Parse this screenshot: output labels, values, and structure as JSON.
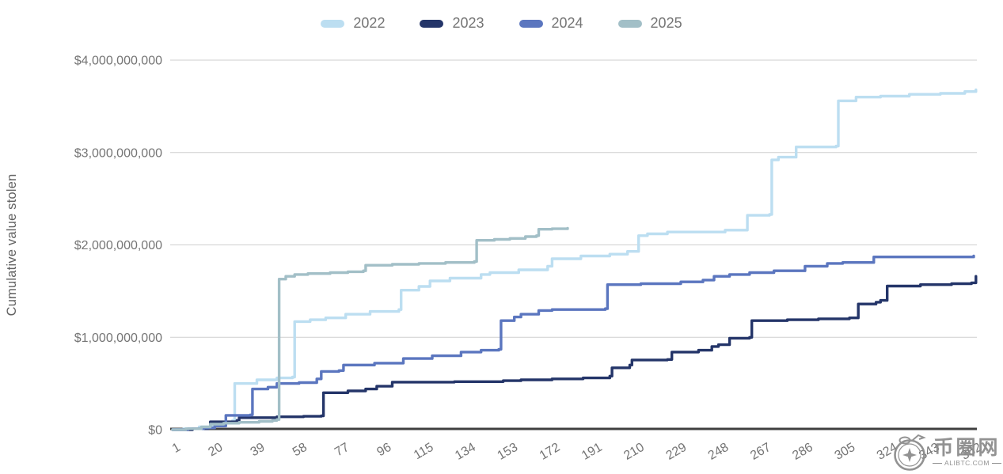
{
  "y_axis": {
    "title": "Cumulative value stolen",
    "ticks": [
      {
        "value": 0,
        "label": "$0"
      },
      {
        "value": 1,
        "label": "$1,000,000,000"
      },
      {
        "value": 2,
        "label": "$2,000,000,000"
      },
      {
        "value": 3,
        "label": "$3,000,000,000"
      },
      {
        "value": 4,
        "label": "$4,000,000,000"
      }
    ]
  },
  "x_axis": {
    "ticks": [
      1,
      20,
      39,
      58,
      77,
      96,
      115,
      134,
      153,
      172,
      191,
      210,
      229,
      248,
      267,
      286,
      305,
      324,
      343,
      362
    ]
  },
  "watermark": {
    "site_name": "币圈网",
    "domain_label": "ALIBTC.COM"
  },
  "colors": {
    "grid": "#cfcfcf",
    "axis": "#3f3f3f",
    "tick_text": "#757575"
  },
  "chart_data": {
    "type": "line",
    "step": true,
    "title": "",
    "xlabel": "",
    "ylabel": "Cumulative value stolen",
    "x_unit": "day of year",
    "value_unit": "USD billions",
    "xlim": [
      1,
      366
    ],
    "ylim": [
      0,
      4
    ],
    "grid": true,
    "legend_position": "top",
    "series": [
      {
        "name": "2022",
        "color": "#bcdef1",
        "points": [
          [
            1,
            0
          ],
          [
            6,
            0.01
          ],
          [
            13,
            0.03
          ],
          [
            19,
            0.05
          ],
          [
            24,
            0.08
          ],
          [
            28,
            0.1
          ],
          [
            29,
            0.5
          ],
          [
            39,
            0.54
          ],
          [
            48,
            0.56
          ],
          [
            55,
            0.57
          ],
          [
            56,
            1.17
          ],
          [
            63,
            1.19
          ],
          [
            70,
            1.21
          ],
          [
            79,
            1.25
          ],
          [
            90,
            1.28
          ],
          [
            103,
            1.3
          ],
          [
            104,
            1.51
          ],
          [
            112,
            1.55
          ],
          [
            117,
            1.61
          ],
          [
            126,
            1.64
          ],
          [
            140,
            1.68
          ],
          [
            144,
            1.7
          ],
          [
            157,
            1.73
          ],
          [
            170,
            1.77
          ],
          [
            172,
            1.85
          ],
          [
            185,
            1.88
          ],
          [
            198,
            1.9
          ],
          [
            206,
            1.93
          ],
          [
            211,
            2.1
          ],
          [
            215,
            2.12
          ],
          [
            224,
            2.14
          ],
          [
            250,
            2.16
          ],
          [
            260,
            2.32
          ],
          [
            270,
            2.33
          ],
          [
            271,
            2.92
          ],
          [
            274,
            2.95
          ],
          [
            282,
            3.06
          ],
          [
            300,
            3.07
          ],
          [
            301,
            3.56
          ],
          [
            309,
            3.6
          ],
          [
            320,
            3.61
          ],
          [
            333,
            3.63
          ],
          [
            347,
            3.64
          ],
          [
            358,
            3.66
          ],
          [
            363,
            3.68
          ]
        ]
      },
      {
        "name": "2023",
        "color": "#243569",
        "points": [
          [
            1,
            0
          ],
          [
            10,
            0.01
          ],
          [
            17,
            0.02
          ],
          [
            18,
            0.085
          ],
          [
            30,
            0.1
          ],
          [
            31,
            0.13
          ],
          [
            48,
            0.14
          ],
          [
            60,
            0.145
          ],
          [
            68,
            0.15
          ],
          [
            69,
            0.4
          ],
          [
            80,
            0.42
          ],
          [
            88,
            0.44
          ],
          [
            93,
            0.47
          ],
          [
            100,
            0.515
          ],
          [
            128,
            0.52
          ],
          [
            150,
            0.53
          ],
          [
            158,
            0.54
          ],
          [
            172,
            0.55
          ],
          [
            186,
            0.56
          ],
          [
            198,
            0.58
          ],
          [
            199,
            0.67
          ],
          [
            207,
            0.7
          ],
          [
            208,
            0.755
          ],
          [
            224,
            0.76
          ],
          [
            226,
            0.84
          ],
          [
            238,
            0.86
          ],
          [
            244,
            0.9
          ],
          [
            247,
            0.92
          ],
          [
            252,
            0.99
          ],
          [
            261,
            1.0
          ],
          [
            262,
            1.18
          ],
          [
            278,
            1.19
          ],
          [
            292,
            1.2
          ],
          [
            306,
            1.21
          ],
          [
            310,
            1.36
          ],
          [
            318,
            1.38
          ],
          [
            320,
            1.4
          ],
          [
            323,
            1.555
          ],
          [
            338,
            1.57
          ],
          [
            352,
            1.58
          ],
          [
            361,
            1.59
          ],
          [
            363,
            1.66
          ]
        ]
      },
      {
        "name": "2024",
        "color": "#5b76bf",
        "points": [
          [
            1,
            0
          ],
          [
            8,
            0.01
          ],
          [
            15,
            0.02
          ],
          [
            20,
            0.04
          ],
          [
            25,
            0.155
          ],
          [
            36,
            0.16
          ],
          [
            37,
            0.44
          ],
          [
            44,
            0.46
          ],
          [
            48,
            0.5
          ],
          [
            58,
            0.51
          ],
          [
            66,
            0.55
          ],
          [
            68,
            0.63
          ],
          [
            76,
            0.64
          ],
          [
            78,
            0.7
          ],
          [
            92,
            0.72
          ],
          [
            105,
            0.77
          ],
          [
            118,
            0.8
          ],
          [
            131,
            0.84
          ],
          [
            140,
            0.86
          ],
          [
            148,
            0.87
          ],
          [
            149,
            1.18
          ],
          [
            155,
            1.22
          ],
          [
            158,
            1.25
          ],
          [
            166,
            1.29
          ],
          [
            172,
            1.3
          ],
          [
            196,
            1.31
          ],
          [
            197,
            1.57
          ],
          [
            212,
            1.58
          ],
          [
            230,
            1.6
          ],
          [
            240,
            1.62
          ],
          [
            245,
            1.66
          ],
          [
            252,
            1.68
          ],
          [
            261,
            1.7
          ],
          [
            272,
            1.72
          ],
          [
            286,
            1.77
          ],
          [
            296,
            1.8
          ],
          [
            303,
            1.81
          ],
          [
            317,
            1.87
          ],
          [
            362,
            1.88
          ]
        ]
      },
      {
        "name": "2025",
        "color": "#a2bfc7",
        "points": [
          [
            1,
            0
          ],
          [
            7,
            0.01
          ],
          [
            14,
            0.03
          ],
          [
            18,
            0.06
          ],
          [
            24,
            0.07
          ],
          [
            31,
            0.08
          ],
          [
            40,
            0.09
          ],
          [
            46,
            0.1
          ],
          [
            48,
            0.11
          ],
          [
            49,
            1.63
          ],
          [
            52,
            1.66
          ],
          [
            56,
            1.68
          ],
          [
            62,
            1.69
          ],
          [
            72,
            1.7
          ],
          [
            80,
            1.71
          ],
          [
            87,
            1.72
          ],
          [
            88,
            1.78
          ],
          [
            100,
            1.79
          ],
          [
            112,
            1.8
          ],
          [
            124,
            1.81
          ],
          [
            137,
            1.82
          ],
          [
            138,
            2.05
          ],
          [
            146,
            2.06
          ],
          [
            153,
            2.07
          ],
          [
            160,
            2.09
          ],
          [
            165,
            2.1
          ],
          [
            166,
            2.17
          ],
          [
            172,
            2.175
          ],
          [
            179,
            2.18
          ]
        ]
      }
    ]
  }
}
